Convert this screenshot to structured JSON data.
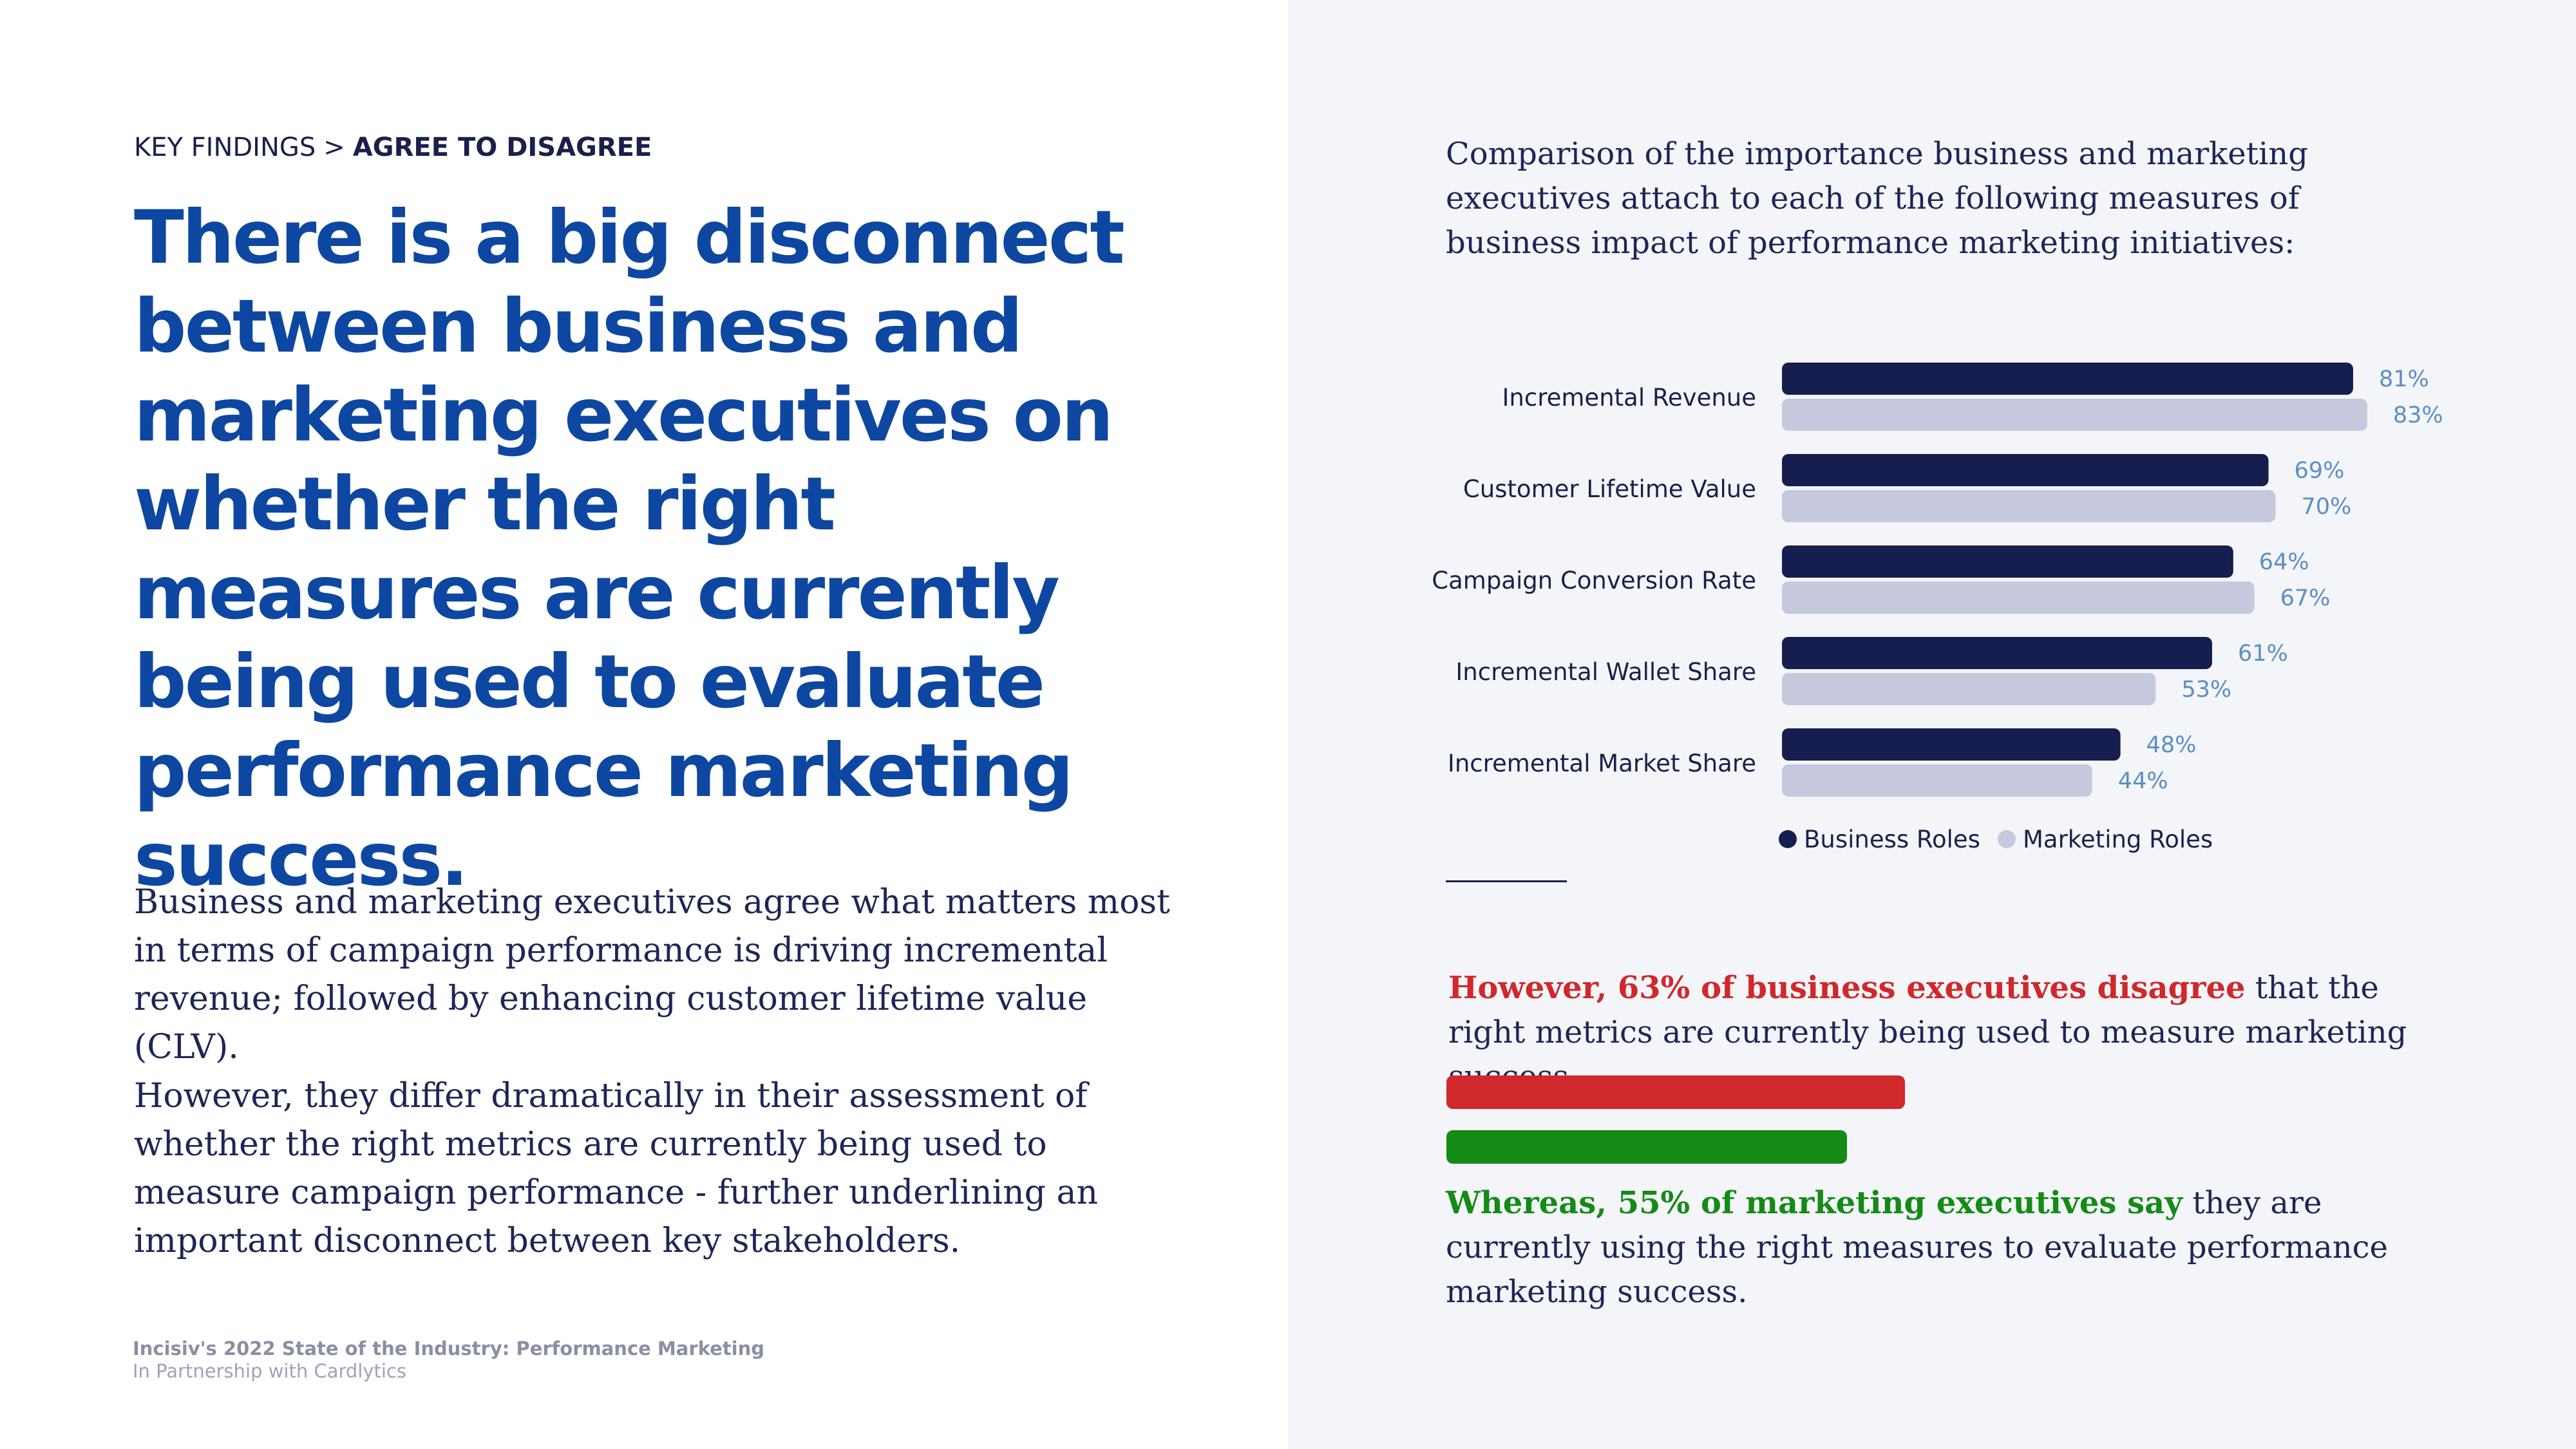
{
  "breadcrumb": {
    "section": "KEY FINDINGS",
    "separator": ">",
    "current": "AGREE TO DISAGREE"
  },
  "headline": "There is a big disconnect between business and marketing executives on whether the right measures are currently being used to evaluate performance marketing success.",
  "body": {
    "paragraph1": "Business and marketing executives agree what matters most in terms of campaign performance is driving incremental revenue; followed by enhancing customer lifetime value (CLV).",
    "paragraph2": "However, they differ dramatically in their assessment of whether the right metrics are currently being used to measure campaign performance - further underlining an important disconnect between key stakeholders."
  },
  "footer": {
    "source": "Incisiv's 2022 State of the Industry: Performance Marketing",
    "partner": "In Partnership with Cardlytics"
  },
  "chart_description": "Comparison of the importance business and marketing executives attach to each of the following measures of business impact of performance marketing initiatives:",
  "chart_data": {
    "type": "bar",
    "orientation": "horizontal",
    "categories": [
      "Incremental Revenue",
      "Customer Lifetime Value",
      "Campaign Conversion Rate",
      "Incremental Wallet Share",
      "Incremental Market Share"
    ],
    "series": [
      {
        "name": "Business Roles",
        "values": [
          81,
          69,
          64,
          61,
          48
        ],
        "labels": [
          "81%",
          "69%",
          "64%",
          "61%",
          "48%"
        ],
        "color": "#161d4f"
      },
      {
        "name": "Marketing Roles",
        "values": [
          83,
          70,
          67,
          53,
          44
        ],
        "labels": [
          "83%",
          "70%",
          "67%",
          "53%",
          "44%"
        ],
        "color": "#c6c8dd"
      }
    ],
    "value_label_color": "#5b8ec4",
    "legend_position": "bottom",
    "grid": false,
    "xlim": [
      0,
      100
    ]
  },
  "stats": {
    "disagree": {
      "highlight": "However, 63% of business executives disagree",
      "rest": " that the right metrics are currently being used to measure marketing success.",
      "value": 63,
      "color": "#d0282b"
    },
    "agree": {
      "highlight": "Whereas, 55% of marketing executives say",
      "rest": " they are currently using the right measures to evaluate performance marketing success.",
      "value": 55,
      "color": "#148b16"
    }
  }
}
